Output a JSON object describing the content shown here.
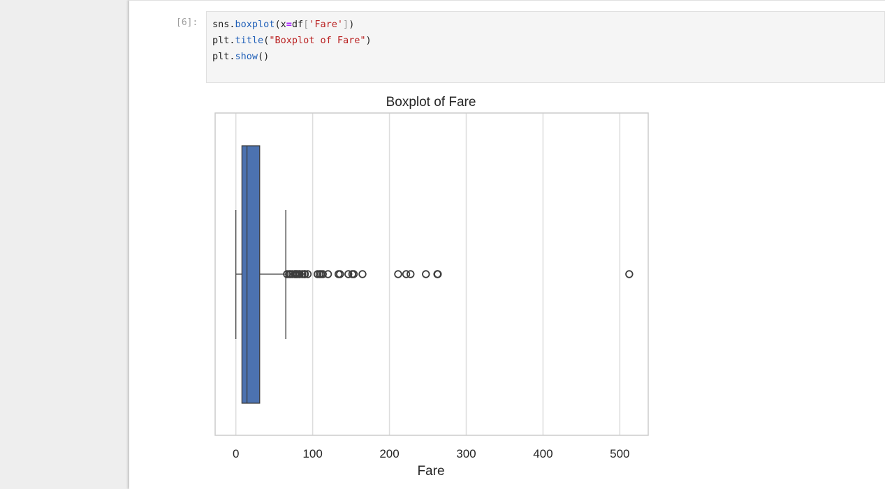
{
  "cell": {
    "prompt": "[6]:",
    "code_lines": [
      [
        {
          "t": "sns",
          "c": "tok-obj"
        },
        {
          "t": ".",
          "c": "tok-obj"
        },
        {
          "t": "boxplot",
          "c": "tok-fn"
        },
        {
          "t": "(",
          "c": "tok-obj"
        },
        {
          "t": "x",
          "c": "tok-obj"
        },
        {
          "t": "=",
          "c": "tok-op"
        },
        {
          "t": "df",
          "c": "tok-obj"
        },
        {
          "t": "[",
          "c": "tok-brk"
        },
        {
          "t": "'Fare'",
          "c": "tok-str"
        },
        {
          "t": "]",
          "c": "tok-brk"
        },
        {
          "t": ")",
          "c": "tok-obj"
        }
      ],
      [
        {
          "t": "plt",
          "c": "tok-obj"
        },
        {
          "t": ".",
          "c": "tok-obj"
        },
        {
          "t": "title",
          "c": "tok-fn"
        },
        {
          "t": "(",
          "c": "tok-obj"
        },
        {
          "t": "\"Boxplot of Fare\"",
          "c": "tok-str"
        },
        {
          "t": ")",
          "c": "tok-obj"
        }
      ],
      [
        {
          "t": "plt",
          "c": "tok-obj"
        },
        {
          "t": ".",
          "c": "tok-obj"
        },
        {
          "t": "show",
          "c": "tok-fn"
        },
        {
          "t": "()",
          "c": "tok-obj"
        }
      ]
    ]
  },
  "chart_data": {
    "type": "boxplot",
    "title": "Boxplot of Fare",
    "xlabel": "Fare",
    "ylabel": "",
    "xlim": [
      -27,
      537
    ],
    "xticks": [
      0,
      100,
      200,
      300,
      400,
      500
    ],
    "grid": "vertical",
    "box_color": "#4c72b0",
    "stats": {
      "whisker_low": 0,
      "q1": 7.9,
      "median": 14.45,
      "q3": 31,
      "whisker_high": 65
    },
    "outliers": [
      66.6,
      69.3,
      71,
      73.5,
      76.7,
      77.3,
      78.9,
      80,
      82.2,
      83.2,
      86.5,
      89.1,
      90,
      93.5,
      106.4,
      108.9,
      110.9,
      113.3,
      120,
      133.7,
      135.6,
      146.5,
      151.6,
      153.5,
      164.9,
      211.3,
      221.8,
      227.5,
      247.5,
      262.4,
      263,
      512.3
    ]
  }
}
